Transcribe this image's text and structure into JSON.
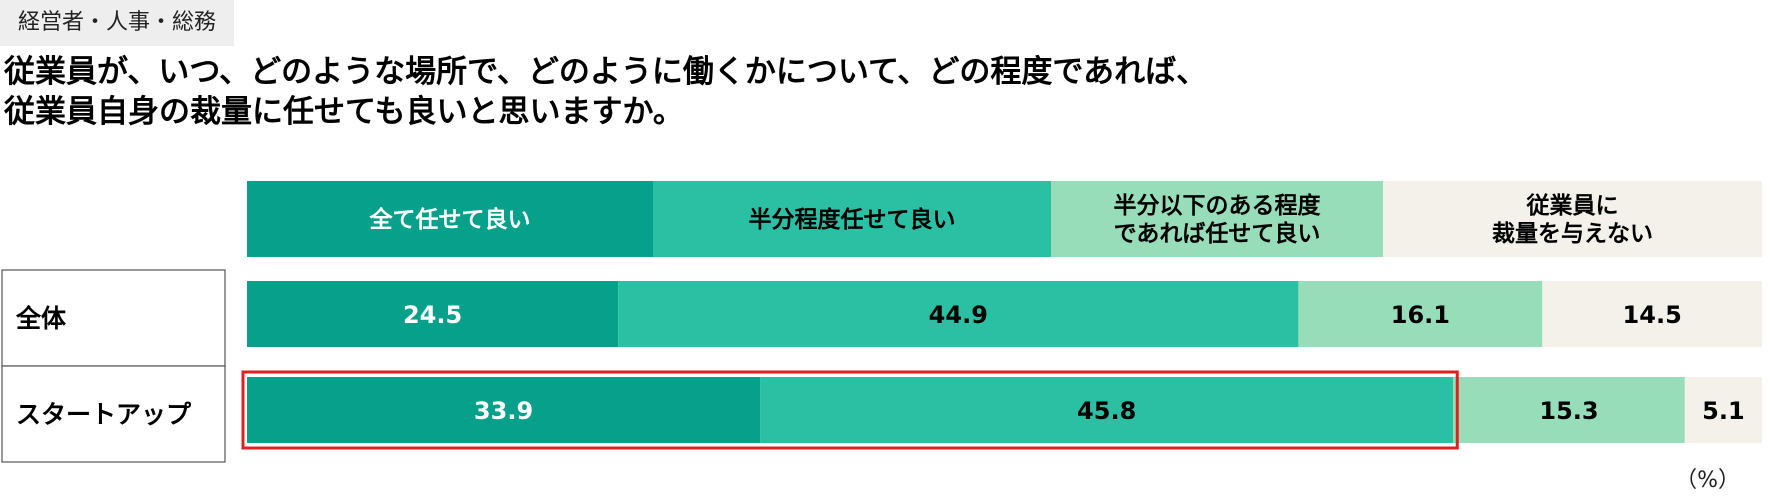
{
  "tag": "経営者・人事・総務",
  "question": {
    "line1": "従業員が、いつ、どのような場所で、どのように働くかについて、どの程度であれば、",
    "line2": "従業員自身の裁量に任せても良いと思いますか。"
  },
  "unit": "（%）",
  "colors": {
    "cat1": "#07a08a",
    "cat2": "#2bbfa4",
    "cat3": "#97ddb9",
    "cat4": "#f3f1ea",
    "highlight": "#e02020"
  },
  "chart_data": {
    "type": "bar",
    "stacked": true,
    "orientation": "horizontal",
    "header_categories": [
      [
        "全て任せて良い"
      ],
      [
        "半分程度任せて良い"
      ],
      [
        "半分以下のある程度",
        "であれば任せて良い"
      ],
      [
        "従業員に",
        "裁量を与えない"
      ]
    ],
    "rows": [
      {
        "label": "全体",
        "values": [
          24.5,
          44.9,
          16.1,
          14.5
        ],
        "highlighted": false
      },
      {
        "label": "スタートアップ",
        "values": [
          33.9,
          45.8,
          15.3,
          5.1
        ],
        "highlighted": true
      }
    ],
    "xlim": [
      0,
      100
    ]
  }
}
